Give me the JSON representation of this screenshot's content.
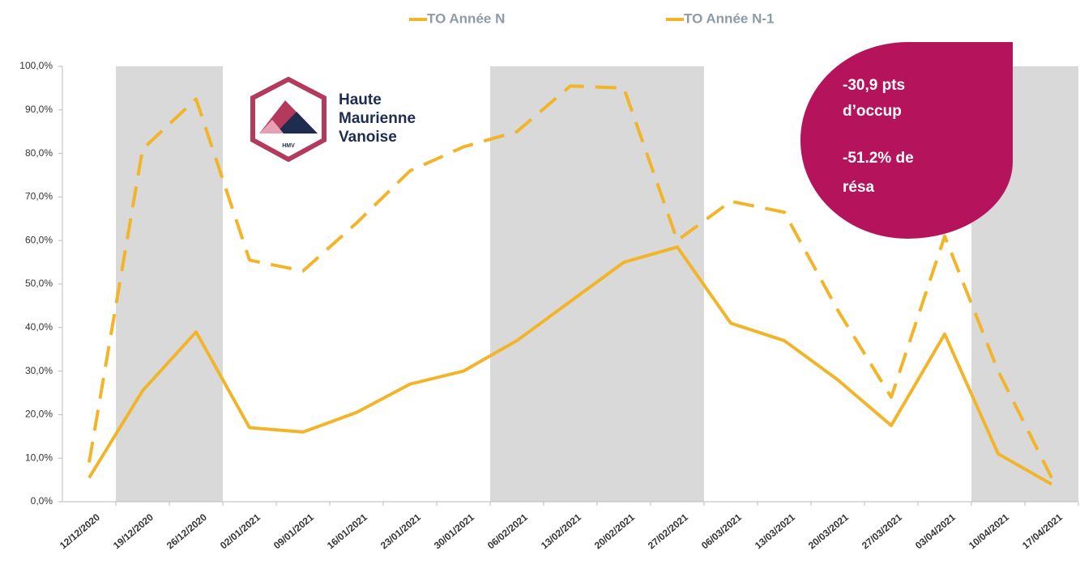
{
  "chart_data": {
    "type": "line",
    "categories": [
      "12/12/2020",
      "19/12/2020",
      "26/12/2020",
      "02/01/2021",
      "09/01/2021",
      "16/01/2021",
      "23/01/2021",
      "30/01/2021",
      "06/02/2021",
      "13/02/2021",
      "20/02/2021",
      "27/02/2021",
      "06/03/2021",
      "13/03/2021",
      "20/03/2021",
      "27/03/2021",
      "03/04/2021",
      "10/04/2021",
      "17/04/2021"
    ],
    "series": [
      {
        "name": "TO Année N",
        "color": "#f2b428",
        "dashed": false,
        "values": [
          5.5,
          25.5,
          39,
          17,
          16,
          20.5,
          27,
          30,
          37,
          46,
          55,
          58.5,
          41,
          37,
          28,
          17.5,
          38.5,
          11,
          4
        ]
      },
      {
        "name": "TO Année N-1",
        "color": "#f2b428",
        "dashed": true,
        "values": [
          9,
          81,
          92.5,
          55.5,
          53,
          64,
          76,
          81.5,
          85,
          95.5,
          95,
          60,
          69,
          66.5,
          44,
          24,
          61,
          30,
          5.5
        ]
      }
    ],
    "ylim": [
      0,
      100
    ],
    "yticks": [
      {
        "value": 0,
        "label": "0,0%"
      },
      {
        "value": 10,
        "label": "10,0%"
      },
      {
        "value": 20,
        "label": "20,0%"
      },
      {
        "value": 30,
        "label": "30,0%"
      },
      {
        "value": 40,
        "label": "40,0%"
      },
      {
        "value": 50,
        "label": "50,0%"
      },
      {
        "value": 60,
        "label": "60,0%"
      },
      {
        "value": 70,
        "label": "70,0%"
      },
      {
        "value": 80,
        "label": "80,0%"
      },
      {
        "value": 90,
        "label": "90,0%"
      },
      {
        "value": 100,
        "label": "100,0%"
      }
    ],
    "grid": false,
    "shaded": [
      [
        "19/12/2020",
        "26/12/2020"
      ],
      [
        "06/02/2021",
        "27/02/2021"
      ],
      [
        "10/04/2021",
        "17/04/2021"
      ]
    ],
    "annotation": [
      "-30,9 pts",
      "d’occup",
      "-51.2% de",
      "résa"
    ],
    "logo": {
      "lines": [
        "Haute",
        "Maurienne",
        "Vanoise"
      ],
      "badge": "HMV"
    }
  }
}
